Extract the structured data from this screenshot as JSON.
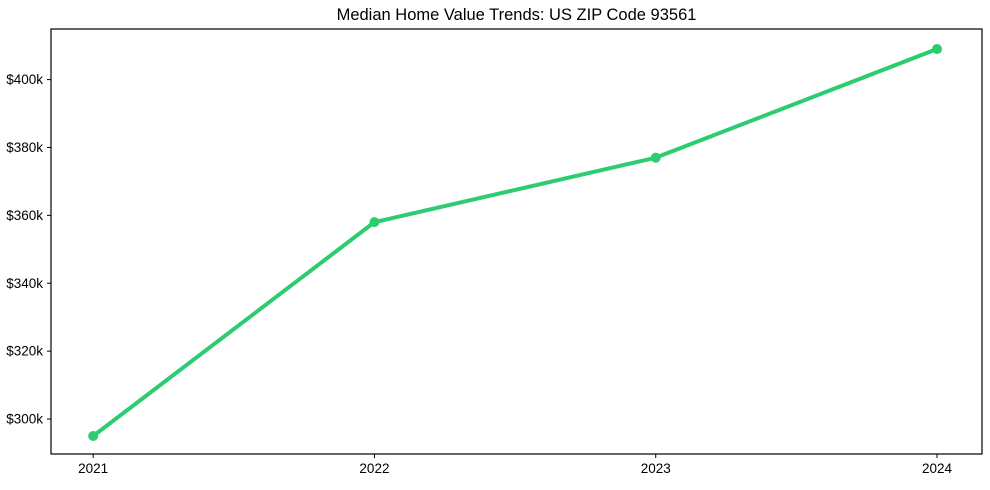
{
  "figure": {
    "background_color": "#ffffff",
    "frame_color": "#000000"
  },
  "chart_data": {
    "type": "line",
    "title": "Median Home Value Trends: US ZIP Code 93561",
    "xlabel": "",
    "ylabel": "",
    "x": [
      2021,
      2022,
      2023,
      2024
    ],
    "x_tick_labels": [
      "2021",
      "2022",
      "2023",
      "2024"
    ],
    "series": [
      {
        "name": "median-home-value",
        "values": [
          295000,
          358000,
          377000,
          409000
        ],
        "color": "#2ecc71",
        "marker": "circle"
      }
    ],
    "y_ticks": [
      300000,
      320000,
      340000,
      360000,
      380000,
      400000
    ],
    "y_tick_labels": [
      "$300k",
      "$320k",
      "$340k",
      "$360k",
      "$380k",
      "$400k"
    ],
    "xlim": [
      2020.85,
      2024.16
    ],
    "ylim": [
      289700,
      414900
    ],
    "grid": false,
    "legend": false
  }
}
